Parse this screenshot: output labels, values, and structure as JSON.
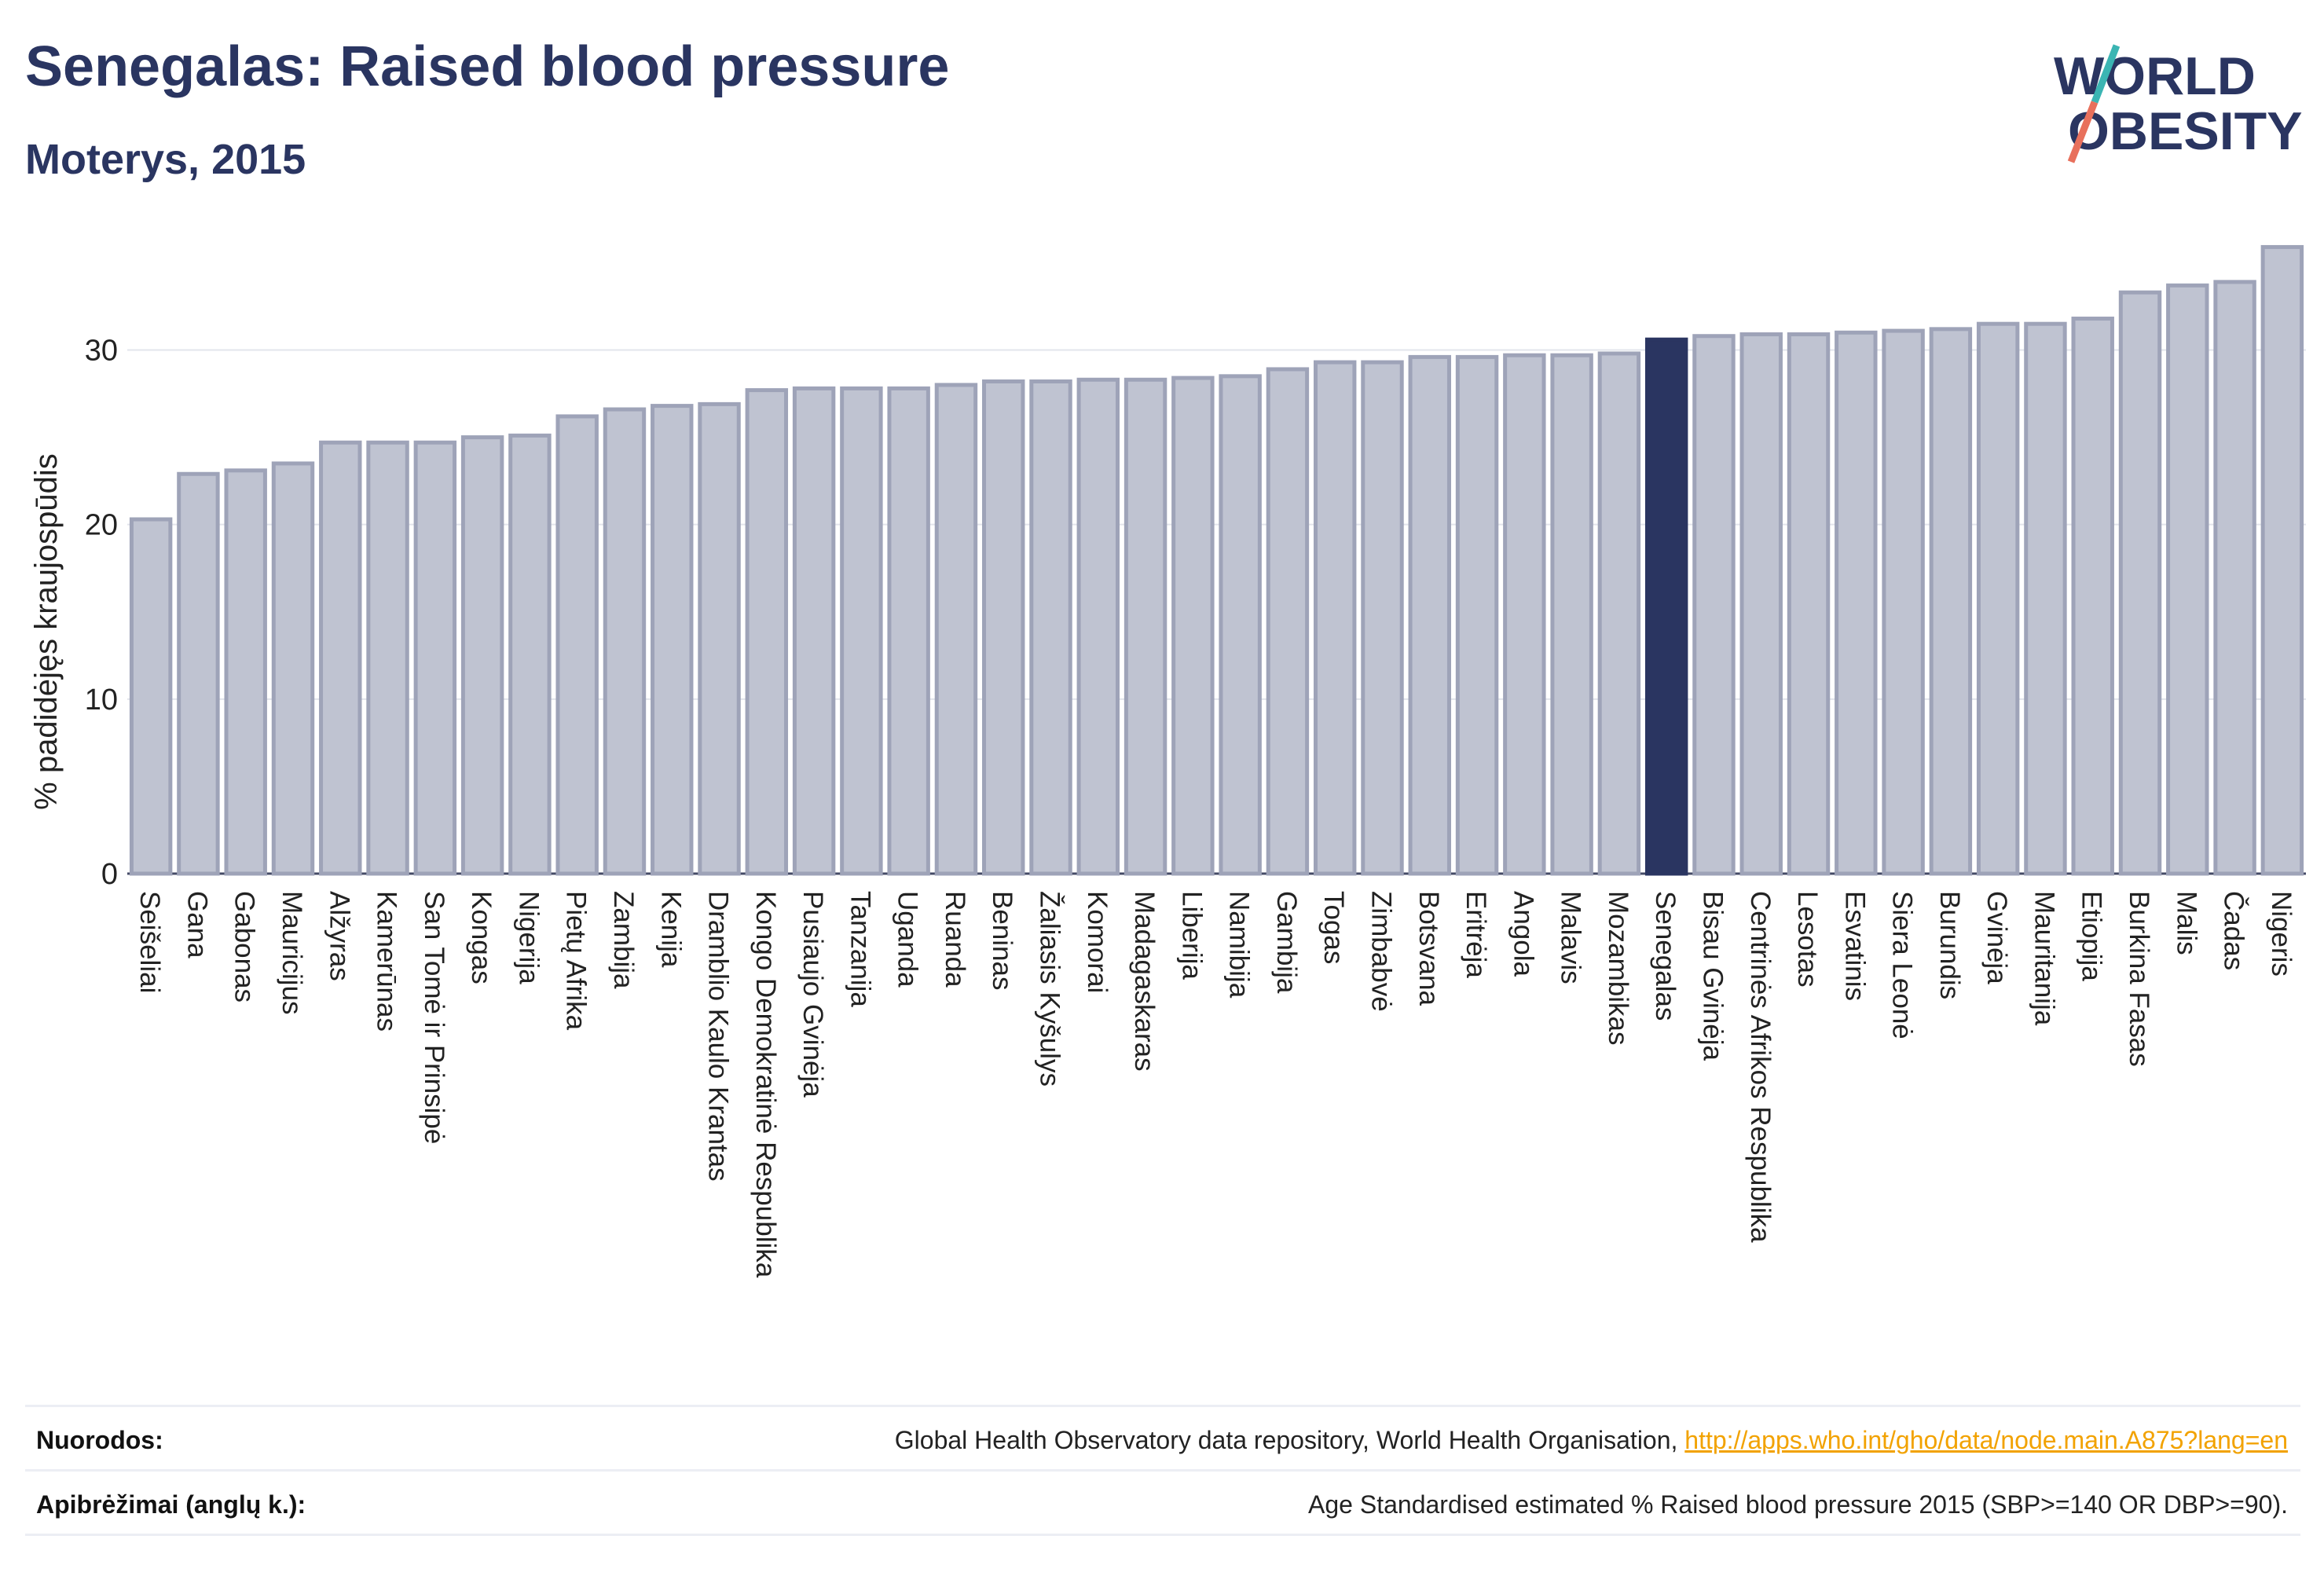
{
  "header": {
    "title": "Senegalas: Raised blood pressure",
    "subtitle": "Moterys, 2015"
  },
  "logo": {
    "line1": "WORLD",
    "line2": "OBESITY",
    "colors": {
      "text": "#2a3561",
      "slash_top": "#3bb5b3",
      "slash_bottom": "#e8705c"
    }
  },
  "colors": {
    "bar": "#bfc3d1",
    "bar_stroke": "#9ea3b8",
    "highlight": "#2a3561",
    "grid": "#e3e5ec",
    "axis_text": "#222222"
  },
  "chart_data": {
    "type": "bar",
    "ylabel": "% padidėjęs kraujospūdis",
    "ylim": [
      0,
      37
    ],
    "yticks": [
      0,
      10,
      20,
      30
    ],
    "grid": true,
    "highlight": "Senegalas",
    "categories": [
      "Seišeliai",
      "Gana",
      "Gabonas",
      "Mauricijus",
      "Alžyras",
      "Kamerūnas",
      "San Tomė ir Prinsipė",
      "Kongas",
      "Nigerija",
      "Pietų Afrika",
      "Zambija",
      "Kenija",
      "Dramblio Kaulo Krantas",
      "Kongo Demokratinė Respublika",
      "Pusiaujo Gvinėja",
      "Tanzanija",
      "Uganda",
      "Ruanda",
      "Beninas",
      "Žaliasis Kyšulys",
      "Komorai",
      "Madagaskaras",
      "Liberija",
      "Namibija",
      "Gambija",
      "Togas",
      "Zimbabvė",
      "Botsvana",
      "Eritrėja",
      "Angola",
      "Malavis",
      "Mozambikas",
      "Senegalas",
      "Bisau Gvinėja",
      "Centrinės Afrikos Respublika",
      "Lesotas",
      "Esvatinis",
      "Siera Leonė",
      "Burundis",
      "Gvinėja",
      "Mauritanija",
      "Etiopija",
      "Burkina Fasas",
      "Malis",
      "Čadas",
      "Nigeris"
    ],
    "values": [
      20.3,
      22.9,
      23.1,
      23.5,
      24.7,
      24.7,
      24.7,
      25.0,
      25.1,
      26.2,
      26.6,
      26.8,
      26.9,
      27.7,
      27.8,
      27.8,
      27.8,
      28.0,
      28.2,
      28.2,
      28.3,
      28.3,
      28.4,
      28.5,
      28.9,
      29.3,
      29.3,
      29.6,
      29.6,
      29.7,
      29.7,
      29.8,
      30.6,
      30.8,
      30.9,
      30.9,
      31.0,
      31.1,
      31.2,
      31.5,
      31.5,
      31.8,
      33.3,
      33.7,
      33.9,
      35.9
    ]
  },
  "footer": {
    "sources_label": "Nuorodos:",
    "sources_text": "Global Health Observatory data repository, World Health Organisation, ",
    "sources_link": "http://apps.who.int/gho/data/node.main.A875?lang=en",
    "definitions_label": "Apibrėžimai (anglų k.):",
    "definitions_text": "Age Standardised estimated % Raised blood pressure 2015 (SBP>=140 OR DBP>=90)."
  }
}
